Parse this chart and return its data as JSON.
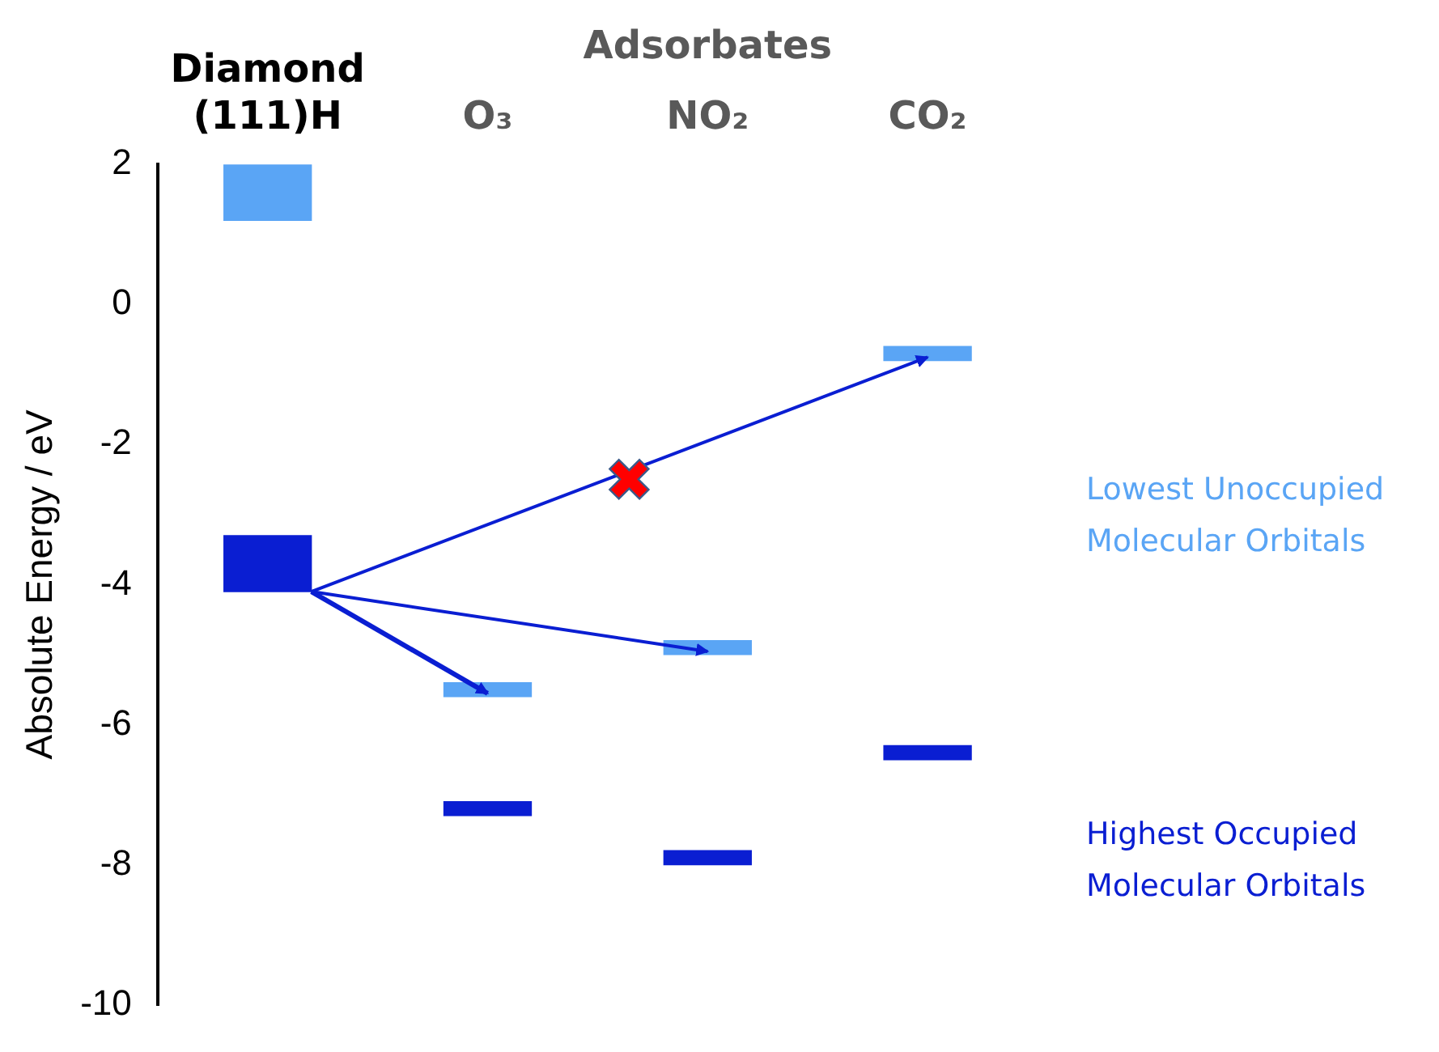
{
  "chart_data": {
    "type": "bar",
    "ylabel": "Absolute Energy / eV",
    "categories": [
      "Diamond (111)H",
      "O₃",
      "NO₂",
      "CO₂"
    ],
    "series": [
      {
        "name": "Lowest Unoccupied Molecular Orbitals",
        "color": "#5aa5f5",
        "base": [
          1.2,
          -5.6,
          -5.0,
          -0.8
        ],
        "values": [
          0.8,
          0.2,
          0.2,
          0.2
        ]
      },
      {
        "name": "Highest Occupied Molecular Orbitals",
        "color": "#0a1ed2",
        "base": [
          -4.1,
          -7.3,
          -8.0,
          -6.5
        ],
        "values": [
          0.8,
          0.2,
          0.2,
          0.2
        ]
      }
    ],
    "annotations": [
      "Adsorbates"
    ],
    "ylim": [
      -10,
      2
    ],
    "yticks": [
      -10,
      -8,
      -6,
      -4,
      -2,
      0,
      2
    ],
    "grid": false,
    "legend": "right"
  }
}
